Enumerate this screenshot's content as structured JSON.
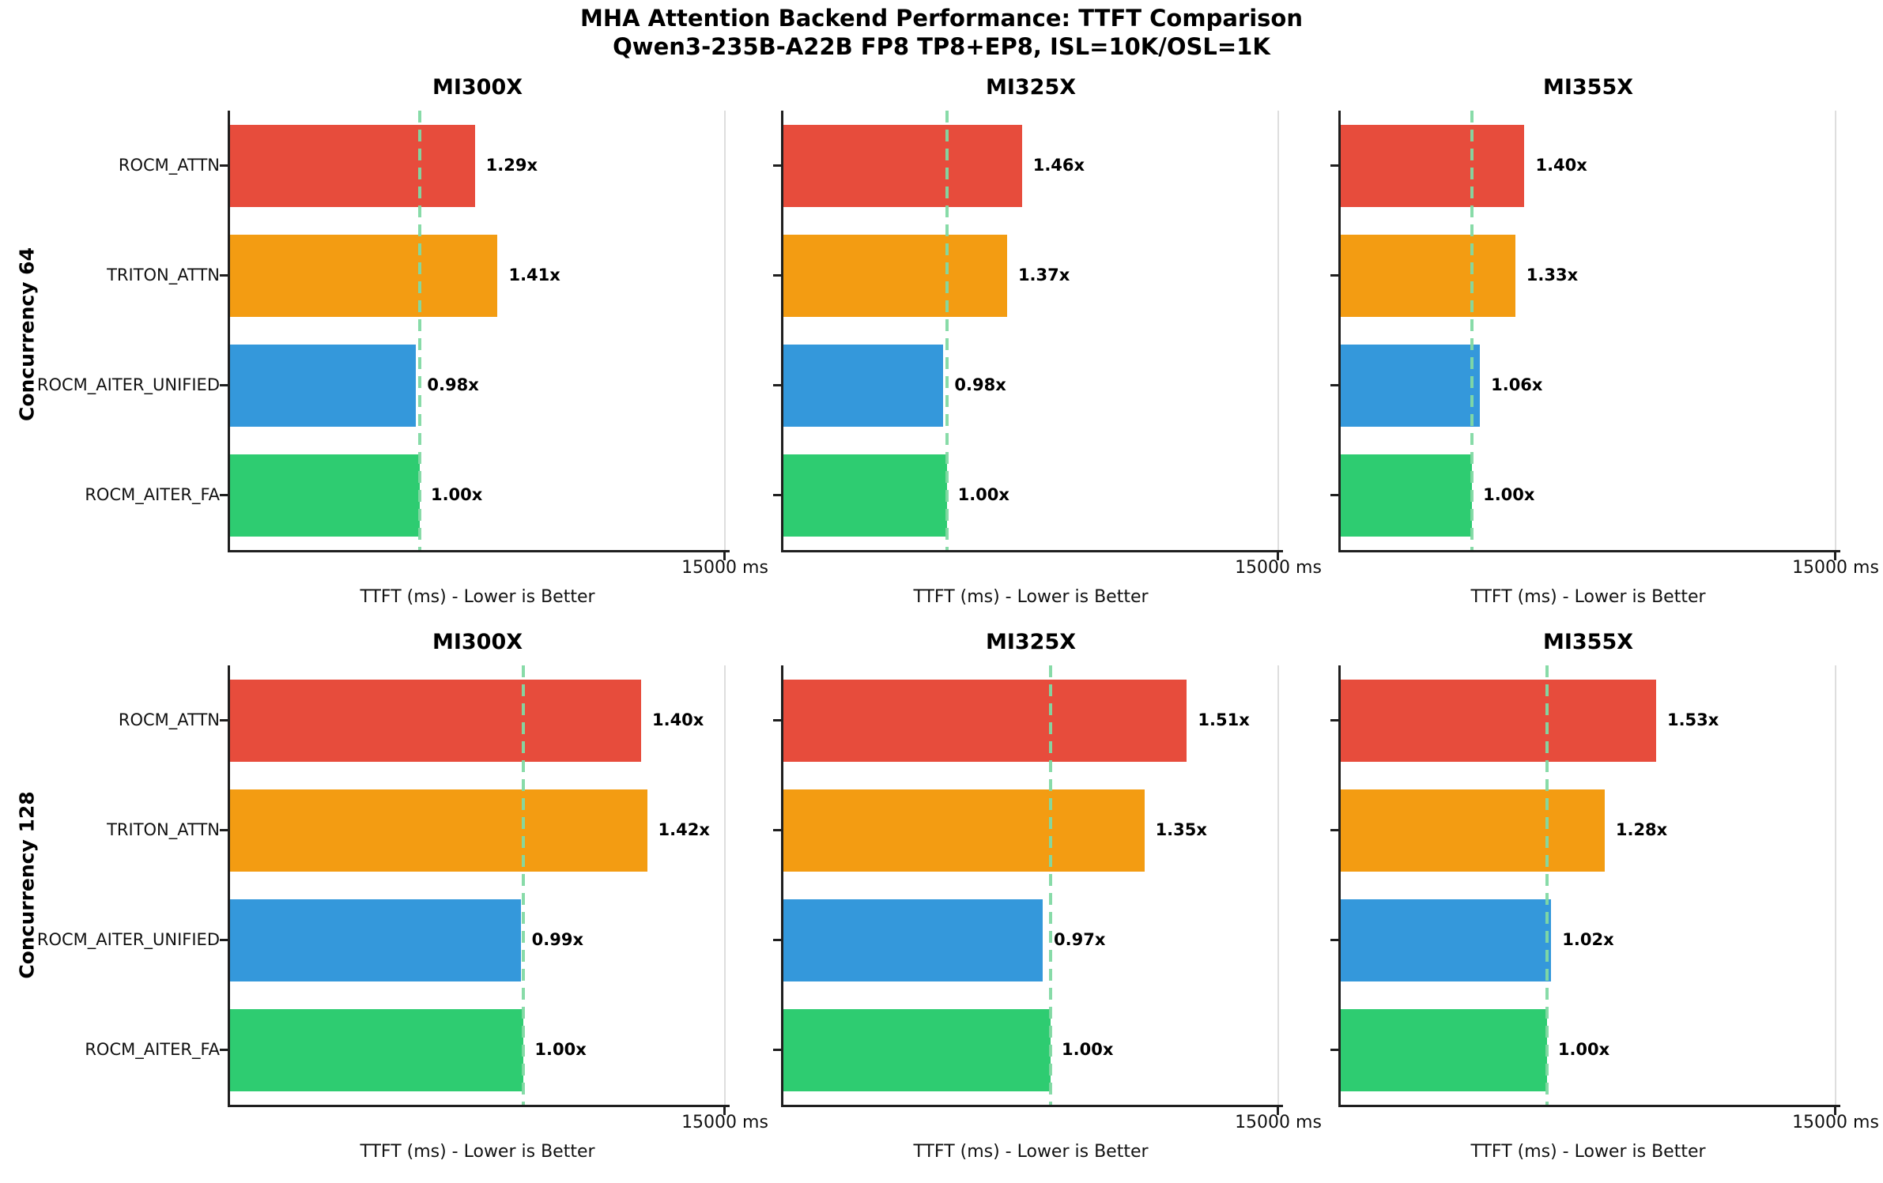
{
  "chart_data": {
    "type": "bar",
    "orientation": "horizontal",
    "title": "MHA Attention Backend Performance: TTFT Comparison",
    "subtitle": "Qwen3-235B-A22B FP8 TP8+EP8, ISL=10K/OSL=1K",
    "categories": [
      "ROCM_ATTN",
      "TRITON_ATTN",
      "ROCM_AITER_UNIFIED",
      "ROCM_AITER_FA"
    ],
    "series_colors": [
      "#e74c3c",
      "#f39c12",
      "#3498db",
      "#2ecc71"
    ],
    "baseline_marker_color": "#81d9a3",
    "xlabel": "TTFT (ms) - Lower is Better",
    "x_tick_label": "15000 ms",
    "xlim": [
      0,
      15000
    ],
    "grid": false,
    "legend": "none",
    "rows": [
      {
        "row_label": "Concurrency 64",
        "subplots": [
          {
            "title": "MI300X",
            "speedup_labels": [
              "1.29x",
              "1.41x",
              "0.98x",
              "1.00x"
            ],
            "speedup_values": [
              1.29,
              1.41,
              0.98,
              1.0
            ],
            "ttft_ms_est": [
              7420,
              8110,
              5640,
              5750
            ],
            "baseline_ttft_ms_est": 5750
          },
          {
            "title": "MI325X",
            "speedup_labels": [
              "1.46x",
              "1.37x",
              "0.98x",
              "1.00x"
            ],
            "speedup_values": [
              1.46,
              1.37,
              0.98,
              1.0
            ],
            "ttft_ms_est": [
              7230,
              6780,
              4850,
              4950
            ],
            "baseline_ttft_ms_est": 4950
          },
          {
            "title": "MI355X",
            "speedup_labels": [
              "1.40x",
              "1.33x",
              "1.06x",
              "1.00x"
            ],
            "speedup_values": [
              1.4,
              1.33,
              1.06,
              1.0
            ],
            "ttft_ms_est": [
              5570,
              5290,
              4220,
              3980
            ],
            "baseline_ttft_ms_est": 3980
          }
        ]
      },
      {
        "row_label": "Concurrency 128",
        "subplots": [
          {
            "title": "MI300X",
            "speedup_labels": [
              "1.40x",
              "1.42x",
              "0.99x",
              "1.00x"
            ],
            "speedup_values": [
              1.4,
              1.42,
              0.99,
              1.0
            ],
            "ttft_ms_est": [
              12460,
              12640,
              8810,
              8900
            ],
            "baseline_ttft_ms_est": 8900
          },
          {
            "title": "MI325X",
            "speedup_labels": [
              "1.51x",
              "1.35x",
              "0.97x",
              "1.00x"
            ],
            "speedup_values": [
              1.51,
              1.35,
              0.97,
              1.0
            ],
            "ttft_ms_est": [
              12230,
              10940,
              7860,
              8100
            ],
            "baseline_ttft_ms_est": 8100
          },
          {
            "title": "MI355X",
            "speedup_labels": [
              "1.53x",
              "1.28x",
              "1.02x",
              "1.00x"
            ],
            "speedup_values": [
              1.53,
              1.28,
              1.02,
              1.0
            ],
            "ttft_ms_est": [
              9560,
              8000,
              6380,
              6250
            ],
            "baseline_ttft_ms_est": 6250
          }
        ]
      }
    ]
  }
}
